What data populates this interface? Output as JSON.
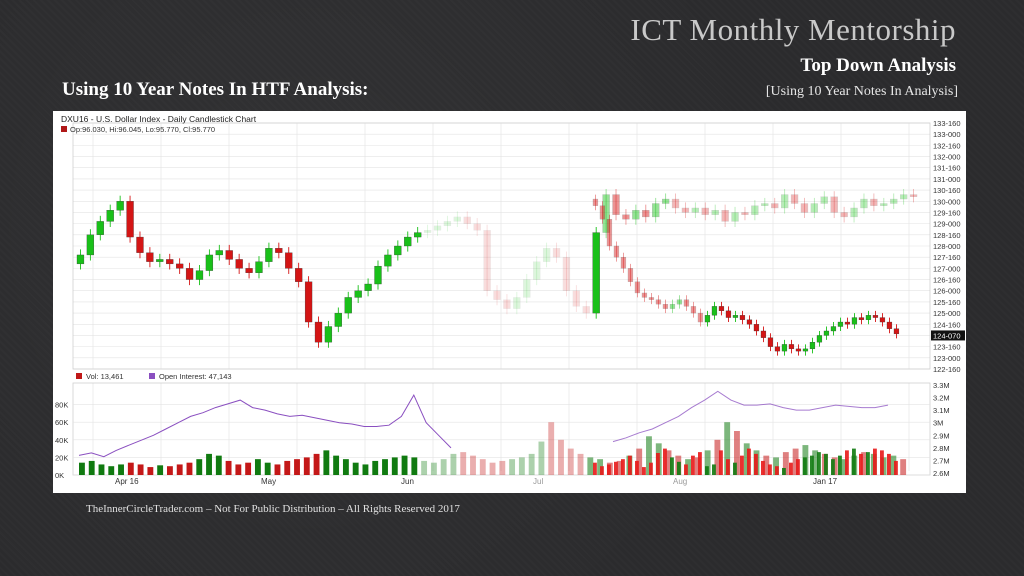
{
  "slide": {
    "brand": "ICT Monthly Mentorship",
    "subtitle": "Top Down Analysis",
    "subnote": "[Using 10 Year Notes In Analysis]",
    "heading": "Using 10 Year Notes In HTF Analysis:",
    "footer": "TheInnerCircleTrader.com – Not For Public Distribution – All Rights Reserved 2017"
  },
  "chart_data": {
    "type": "candlestick",
    "title": "DXU16 - U.S. Dollar Index - Daily Candlestick Chart",
    "ohlc_label": "Op:96.030, Hi:96.045, Lo:95.770, Cl:95.770",
    "price_ticks": [
      "133-160",
      "133-000",
      "132-160",
      "132-000",
      "131-160",
      "131-000",
      "130-160",
      "130-000",
      "129-160",
      "129-000",
      "128-160",
      "128-000",
      "127-160",
      "127-000",
      "126-160",
      "126-000",
      "125-160",
      "125-000",
      "124-160",
      "124-070",
      "123-160",
      "123-000",
      "122-160"
    ],
    "last_price": "124-070",
    "ylim": [
      122.5,
      133.5
    ],
    "x_labels": [
      "Apr 16",
      "May",
      "Jun",
      "Jul",
      "Aug",
      "Jan 17"
    ],
    "volume_label": "Vol: 13,461",
    "open_interest_label": "Open Interest: 47,143",
    "volume_ticks": [
      "80K",
      "60K",
      "40K",
      "20K",
      "0K"
    ],
    "oi_ticks": [
      "3.3M",
      "3.2M",
      "3.1M",
      "3M",
      "2.9M",
      "2.8M",
      "2.7M",
      "2.6M"
    ],
    "colors": {
      "up": "#19c019",
      "down": "#d41515",
      "oi": "#8a4fc0",
      "grid": "#e3e3e3"
    },
    "dxy_closes": [
      127.6,
      128.5,
      129.1,
      129.6,
      130.0,
      128.4,
      127.7,
      127.3,
      127.4,
      127.2,
      127.0,
      126.5,
      126.9,
      127.6,
      127.8,
      127.4,
      127.0,
      126.8,
      127.3,
      127.9,
      127.7,
      127.0,
      126.4,
      124.6,
      123.7,
      124.4,
      125.0,
      125.7,
      126.0,
      126.3,
      127.1,
      127.6,
      128.0,
      128.4,
      128.6,
      128.7,
      128.9,
      129.1,
      129.3,
      129.0,
      128.7,
      126.0,
      125.6,
      125.2,
      125.7,
      126.5,
      127.3,
      127.9,
      127.5,
      126.0,
      125.3,
      125.0,
      128.6,
      130.3,
      129.4,
      129.2,
      129.6,
      129.3,
      129.9,
      130.1,
      129.7,
      129.5,
      129.7,
      129.4,
      129.6,
      129.1,
      129.5,
      129.4,
      129.8,
      129.9,
      129.7,
      130.3,
      129.9,
      129.5,
      129.9,
      130.2,
      129.5,
      129.3,
      129.7,
      130.1,
      129.8,
      129.9,
      130.1,
      130.3,
      130.2
    ],
    "note_closes": [
      129.8,
      129.2,
      128.0,
      127.5,
      127.0,
      126.4,
      125.9,
      125.7,
      125.6,
      125.4,
      125.2,
      125.4,
      125.6,
      125.3,
      125.0,
      124.6,
      124.9,
      125.3,
      125.1,
      124.8,
      124.9,
      124.7,
      124.5,
      124.2,
      123.9,
      123.5,
      123.3,
      123.6,
      123.4,
      123.3,
      123.4,
      123.7,
      124.0,
      124.2,
      124.4,
      124.6,
      124.5,
      124.8,
      124.7,
      124.9,
      124.8,
      124.6,
      124.3,
      124.07
    ],
    "note_vol_k": [
      14,
      10,
      12,
      15,
      18,
      22,
      16,
      9,
      14,
      25,
      30,
      20,
      15,
      12,
      22,
      26,
      10,
      12,
      28,
      18,
      14,
      22,
      30,
      24,
      16,
      12,
      10,
      8,
      14,
      18,
      20,
      22,
      26,
      24,
      18,
      22,
      28,
      30,
      24,
      26,
      30,
      28,
      24,
      16
    ],
    "dxy_vol_k": [
      14,
      16,
      12,
      10,
      12,
      14,
      12,
      9,
      11,
      10,
      12,
      14,
      18,
      24,
      22,
      16,
      12,
      14,
      18,
      14,
      12,
      16,
      18,
      20,
      24,
      28,
      22,
      18,
      14,
      12,
      16,
      18,
      20,
      22,
      20,
      16,
      14,
      18,
      24,
      26,
      22,
      18,
      14,
      16,
      18,
      20,
      24,
      38,
      60,
      40,
      30,
      24,
      20,
      18,
      14,
      16,
      22,
      30,
      44,
      36,
      28,
      22,
      18,
      20,
      28,
      40,
      60,
      50,
      36,
      28,
      22,
      20,
      26,
      30,
      34,
      28,
      24,
      20,
      18,
      22,
      26,
      24,
      20,
      22,
      18
    ],
    "oi_values": [
      2.74,
      2.76,
      2.73,
      2.78,
      2.82,
      2.86,
      2.9,
      2.95,
      3.0,
      3.05,
      3.08,
      3.12,
      3.15,
      3.18,
      3.12,
      3.1,
      3.07,
      3.05,
      3.06,
      3.04,
      3.02,
      3.0,
      2.99,
      2.97,
      2.97,
      2.98,
      3.05,
      3.22,
      3.0,
      2.9,
      2.8
    ],
    "oi_ghost_values": [
      2.85,
      2.88,
      2.92,
      2.95,
      3.0,
      3.05,
      3.12,
      3.18,
      3.25,
      3.18,
      3.14,
      3.14,
      3.15,
      3.12,
      3.1,
      3.1,
      3.12,
      3.14,
      3.13,
      3.12,
      3.12,
      3.14
    ]
  }
}
